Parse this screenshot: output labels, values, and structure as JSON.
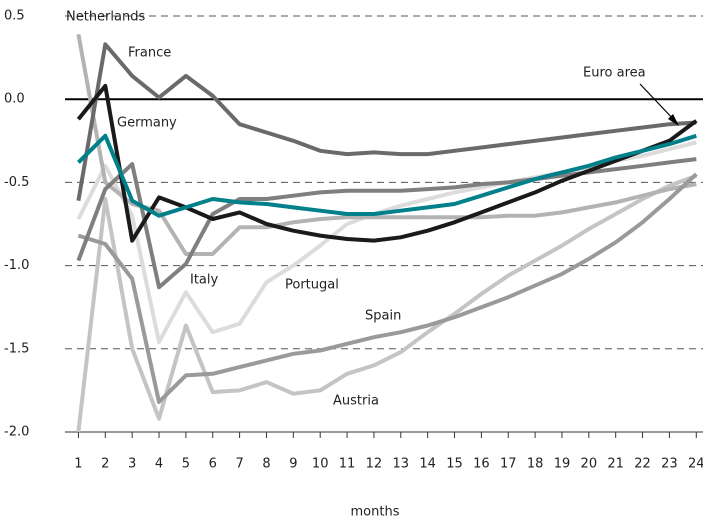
{
  "chart_data": {
    "type": "line",
    "x_label": "months",
    "x": [
      1,
      2,
      3,
      4,
      5,
      6,
      7,
      8,
      9,
      10,
      11,
      12,
      13,
      14,
      15,
      16,
      17,
      18,
      19,
      20,
      21,
      22,
      23,
      24
    ],
    "xlim": [
      0.5,
      24.25
    ],
    "xticks": [
      1,
      2,
      3,
      4,
      5,
      6,
      7,
      8,
      9,
      10,
      11,
      12,
      13,
      14,
      15,
      16,
      17,
      18,
      19,
      20,
      21,
      22,
      23,
      24
    ],
    "ylim": [
      -2.0,
      0.5
    ],
    "yticks": [
      0.5,
      {
        "value": 0,
        "label": "0.0"
      },
      -0.5,
      {
        "value": -1,
        "label": "-1.0"
      },
      -1.5,
      {
        "value": -2,
        "label": "-2.0"
      }
    ],
    "grid": true,
    "series": [
      {
        "name": "Portugal",
        "color": "#dcdcdc",
        "values": [
          -0.72,
          -0.4,
          -0.7,
          -1.46,
          -1.16,
          -1.4,
          -1.35,
          -1.1,
          -1.0,
          -0.88,
          -0.75,
          -0.69,
          -0.64,
          -0.6,
          -0.56,
          -0.53,
          -0.5,
          -0.47,
          -0.44,
          -0.41,
          -0.37,
          -0.34,
          -0.3,
          -0.26
        ]
      },
      {
        "name": "Austria",
        "color": "#c4c4c4",
        "values": [
          -2.0,
          -0.6,
          -1.5,
          -1.92,
          -1.36,
          -1.76,
          -1.75,
          -1.7,
          -1.77,
          -1.75,
          -1.65,
          -1.6,
          -1.52,
          -1.4,
          -1.29,
          -1.17,
          -1.06,
          -0.97,
          -0.88,
          -0.78,
          -0.69,
          -0.6,
          -0.52,
          -0.46
        ]
      },
      {
        "name": "Netherlands",
        "color": "#b3b3b3",
        "values": [
          0.39,
          -0.5,
          -0.63,
          -0.67,
          -0.93,
          -0.93,
          -0.77,
          -0.77,
          -0.74,
          -0.72,
          -0.71,
          -0.71,
          -0.71,
          -0.71,
          -0.71,
          -0.71,
          -0.7,
          -0.7,
          -0.68,
          -0.65,
          -0.62,
          -0.58,
          -0.54,
          -0.51
        ]
      },
      {
        "name": "Spain",
        "color": "#9a9a9a",
        "values": [
          -0.82,
          -0.87,
          -1.08,
          -1.82,
          -1.66,
          -1.65,
          -1.61,
          -1.57,
          -1.53,
          -1.51,
          -1.47,
          -1.43,
          -1.4,
          -1.36,
          -1.31,
          -1.25,
          -1.19,
          -1.12,
          -1.05,
          -0.96,
          -0.86,
          -0.74,
          -0.6,
          -0.45
        ]
      },
      {
        "name": "Italy",
        "color": "#7f7f7f",
        "values": [
          -0.97,
          -0.54,
          -0.39,
          -1.13,
          -0.99,
          -0.69,
          -0.6,
          -0.6,
          -0.58,
          -0.56,
          -0.55,
          -0.55,
          -0.55,
          -0.54,
          -0.53,
          -0.51,
          -0.5,
          -0.48,
          -0.46,
          -0.44,
          -0.42,
          -0.4,
          -0.38,
          -0.36
        ]
      },
      {
        "name": "France",
        "color": "#6a6a6a",
        "values": [
          -0.61,
          0.33,
          0.14,
          0.01,
          0.14,
          0.02,
          -0.15,
          -0.2,
          -0.25,
          -0.31,
          -0.33,
          -0.32,
          -0.33,
          -0.33,
          -0.31,
          -0.29,
          -0.27,
          -0.25,
          -0.23,
          -0.21,
          -0.19,
          -0.17,
          -0.15,
          -0.14
        ]
      },
      {
        "name": "Euro area",
        "color": "#1a1a1a",
        "values": [
          -0.12,
          0.08,
          -0.85,
          -0.59,
          -0.65,
          -0.72,
          -0.68,
          -0.75,
          -0.79,
          -0.82,
          -0.84,
          -0.85,
          -0.83,
          -0.79,
          -0.74,
          -0.68,
          -0.62,
          -0.56,
          -0.49,
          -0.43,
          -0.37,
          -0.31,
          -0.25,
          -0.13
        ]
      },
      {
        "name": "Germany",
        "color": "#00808a",
        "values": [
          -0.38,
          -0.22,
          -0.61,
          -0.7,
          -0.65,
          -0.6,
          -0.62,
          -0.63,
          -0.65,
          -0.67,
          -0.69,
          -0.69,
          -0.67,
          -0.65,
          -0.63,
          -0.58,
          -0.53,
          -0.48,
          -0.44,
          -0.4,
          -0.35,
          -0.31,
          -0.27,
          -0.22
        ]
      }
    ]
  }
}
